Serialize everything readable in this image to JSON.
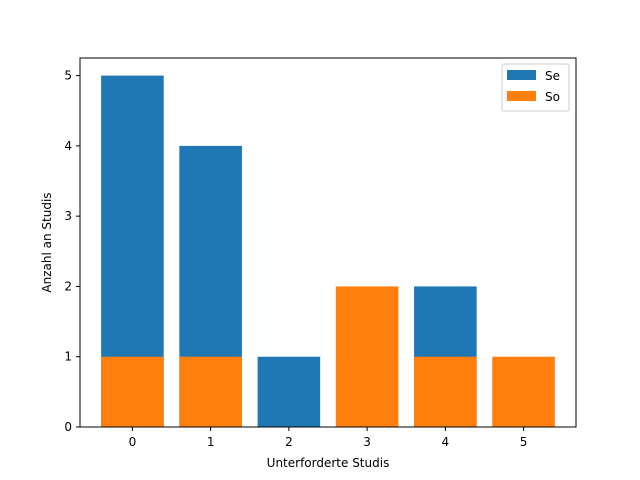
{
  "chart_data": {
    "type": "bar",
    "categories": [
      "0",
      "1",
      "2",
      "3",
      "4",
      "5"
    ],
    "series": [
      {
        "name": "Se",
        "values": [
          5,
          4,
          1,
          0,
          2,
          0
        ],
        "color": "#1f77b4"
      },
      {
        "name": "So",
        "values": [
          1,
          1,
          0,
          2,
          1,
          1
        ],
        "color": "#ff7f0e"
      }
    ],
    "xlabel": "Unterforderte Studis",
    "ylabel": "Anzahl an Studis",
    "ylim": [
      0,
      5.25
    ],
    "yticks": [
      0,
      1,
      2,
      3,
      4,
      5
    ],
    "grid": false,
    "legend_position": "top-right",
    "overlay": true
  }
}
